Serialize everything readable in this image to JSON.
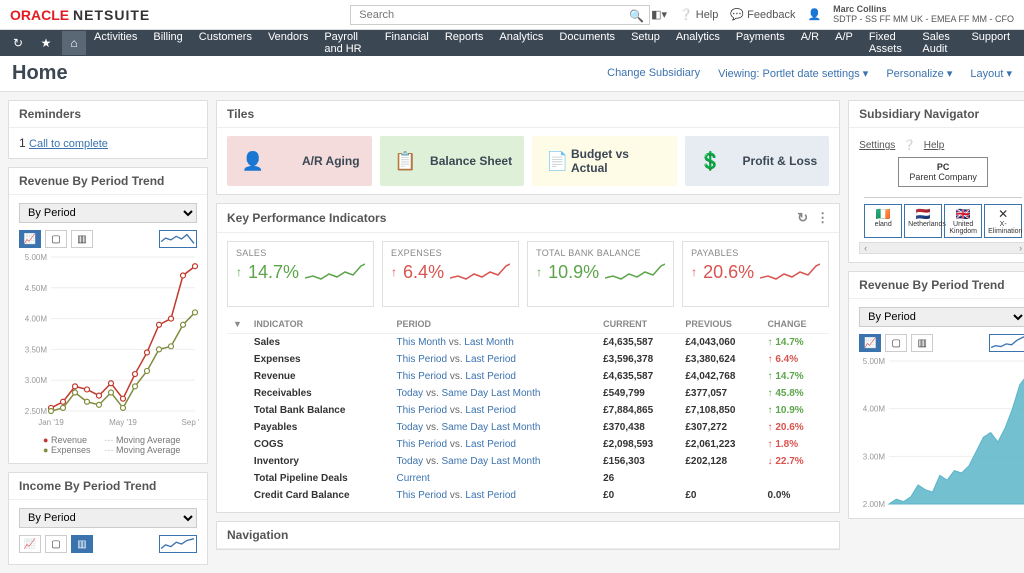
{
  "brand": {
    "oracle": "ORACLE",
    "netsuite": "NETSUITE"
  },
  "search": {
    "placeholder": "Search"
  },
  "top_actions": {
    "help": "Help",
    "feedback": "Feedback"
  },
  "user": {
    "name": "Marc Collins",
    "role": "SDTP - SS FF MM UK - EMEA FF MM - CFO"
  },
  "nav_menu": [
    "Activities",
    "Billing",
    "Customers",
    "Vendors",
    "Payroll and HR",
    "Financial",
    "Reports",
    "Analytics",
    "Documents",
    "Setup",
    "Analytics",
    "Payments",
    "A/R",
    "A/P",
    "Fixed Assets",
    "Sales Audit",
    "Support"
  ],
  "page_title": "Home",
  "page_actions": {
    "subsidiary": "Change Subsidiary",
    "viewing": "Viewing: Portlet date settings",
    "personalize": "Personalize",
    "layout": "Layout"
  },
  "reminders": {
    "title": "Reminders",
    "item_prefix": "1 ",
    "item_link": "Call to complete"
  },
  "rev_trend": {
    "title": "Revenue By Period Trend",
    "selector": "By Period",
    "y_ticks": [
      "5.00M",
      "4.50M",
      "4.00M",
      "3.50M",
      "3.00M",
      "2.50M"
    ],
    "x_ticks": [
      "Jan '19",
      "May '19",
      "Sep '19"
    ],
    "legend": [
      "Revenue",
      "Expenses",
      "Moving Average",
      "Moving Average"
    ],
    "revenue_color": "#c0392b",
    "expense_color": "#7f8c3d",
    "revenue_points": [
      2.55,
      2.65,
      2.9,
      2.85,
      2.75,
      2.95,
      2.7,
      3.1,
      3.45,
      3.9,
      4.0,
      4.7,
      4.85
    ],
    "expense_points": [
      2.5,
      2.55,
      2.8,
      2.65,
      2.6,
      2.8,
      2.55,
      2.9,
      3.15,
      3.5,
      3.55,
      3.9,
      4.1
    ]
  },
  "income_trend": {
    "title": "Income By Period Trend",
    "selector": "By Period"
  },
  "tiles": {
    "title": "Tiles",
    "items": [
      {
        "label": "A/R Aging",
        "bg": "#f4dcdc",
        "fg": "#3c4754",
        "icon": "👤"
      },
      {
        "label": "Balance Sheet",
        "bg": "#dff0d8",
        "fg": "#3c4754",
        "icon": "📋"
      },
      {
        "label": "Budget vs Actual",
        "bg": "#fefbe6",
        "fg": "#3c4754",
        "icon": "📄"
      },
      {
        "label": "Profit & Loss",
        "bg": "#e6ecf2",
        "fg": "#3c4754",
        "icon": "💲"
      }
    ]
  },
  "kpi": {
    "title": "Key Performance Indicators",
    "cards": [
      {
        "label": "SALES",
        "value": "14.7%",
        "dir": "up-g",
        "spark_color": "#5ca54a"
      },
      {
        "label": "EXPENSES",
        "value": "6.4%",
        "dir": "up-r",
        "spark_color": "#d9534f"
      },
      {
        "label": "TOTAL BANK BALANCE",
        "value": "10.9%",
        "dir": "up-g",
        "spark_color": "#5ca54a"
      },
      {
        "label": "PAYABLES",
        "value": "20.6%",
        "dir": "up-r",
        "spark_color": "#d9534f"
      }
    ],
    "columns": [
      "INDICATOR",
      "PERIOD",
      "CURRENT",
      "PREVIOUS",
      "CHANGE"
    ],
    "rows": [
      {
        "ind": "Sales",
        "p1": "This Month",
        "p2": "Last Month",
        "cur": "£4,635,587",
        "prev": "£4,043,060",
        "chg": "14.7%",
        "dir": "up-g"
      },
      {
        "ind": "Expenses",
        "p1": "This Period",
        "p2": "Last Period",
        "cur": "£3,596,378",
        "prev": "£3,380,624",
        "chg": "6.4%",
        "dir": "up-r"
      },
      {
        "ind": "Revenue",
        "p1": "This Period",
        "p2": "Last Period",
        "cur": "£4,635,587",
        "prev": "£4,042,768",
        "chg": "14.7%",
        "dir": "up-g"
      },
      {
        "ind": "Receivables",
        "p1": "Today",
        "p2": "Same Day Last Month",
        "cur": "£549,799",
        "prev": "£377,057",
        "chg": "45.8%",
        "dir": "up-g"
      },
      {
        "ind": "Total Bank Balance",
        "p1": "This Period",
        "p2": "Last Period",
        "cur": "£7,884,865",
        "prev": "£7,108,850",
        "chg": "10.9%",
        "dir": "up-g"
      },
      {
        "ind": "Payables",
        "p1": "Today",
        "p2": "Same Day Last Month",
        "cur": "£370,438",
        "prev": "£307,272",
        "chg": "20.6%",
        "dir": "up-r"
      },
      {
        "ind": "COGS",
        "p1": "This Period",
        "p2": "Last Period",
        "cur": "£2,098,593",
        "prev": "£2,061,223",
        "chg": "1.8%",
        "dir": "up-r"
      },
      {
        "ind": "Inventory",
        "p1": "Today",
        "p2": "Same Day Last Month",
        "cur": "£156,303",
        "prev": "£202,128",
        "chg": "22.7%",
        "dir": "dn-r"
      },
      {
        "ind": "Total Pipeline Deals",
        "p1": "Current",
        "p2": "",
        "cur": "26",
        "prev": "",
        "chg": "",
        "dir": ""
      },
      {
        "ind": "Credit Card Balance",
        "p1": "This Period",
        "p2": "Last Period",
        "cur": "£0",
        "prev": "£0",
        "chg": "0.0%",
        "dir": ""
      }
    ]
  },
  "navigation": {
    "title": "Navigation"
  },
  "sub_nav": {
    "title": "Subsidiary Navigator",
    "settings": "Settings",
    "help": "Help",
    "parent_code": "PC",
    "parent_label": "Parent Company",
    "children": [
      {
        "flag": "🇮🇪",
        "label": "eland"
      },
      {
        "flag": "🇳🇱",
        "label": "Netherlands"
      },
      {
        "flag": "🇬🇧",
        "label": "United Kingdom"
      },
      {
        "flag": "✕",
        "label": "X-Elimination"
      }
    ]
  },
  "rev_trend_r": {
    "title": "Revenue By Period Trend",
    "selector": "By Period",
    "y_ticks": [
      "5.00M",
      "4.00M",
      "3.00M",
      "2.00M"
    ],
    "area_color": "#5bb5c9",
    "area_points": [
      2.0,
      2.1,
      2.05,
      2.15,
      2.4,
      2.3,
      2.25,
      2.6,
      2.5,
      2.7,
      2.65,
      2.8,
      3.1,
      3.4,
      3.5,
      3.3,
      3.6,
      4.0,
      4.5,
      4.7
    ]
  }
}
